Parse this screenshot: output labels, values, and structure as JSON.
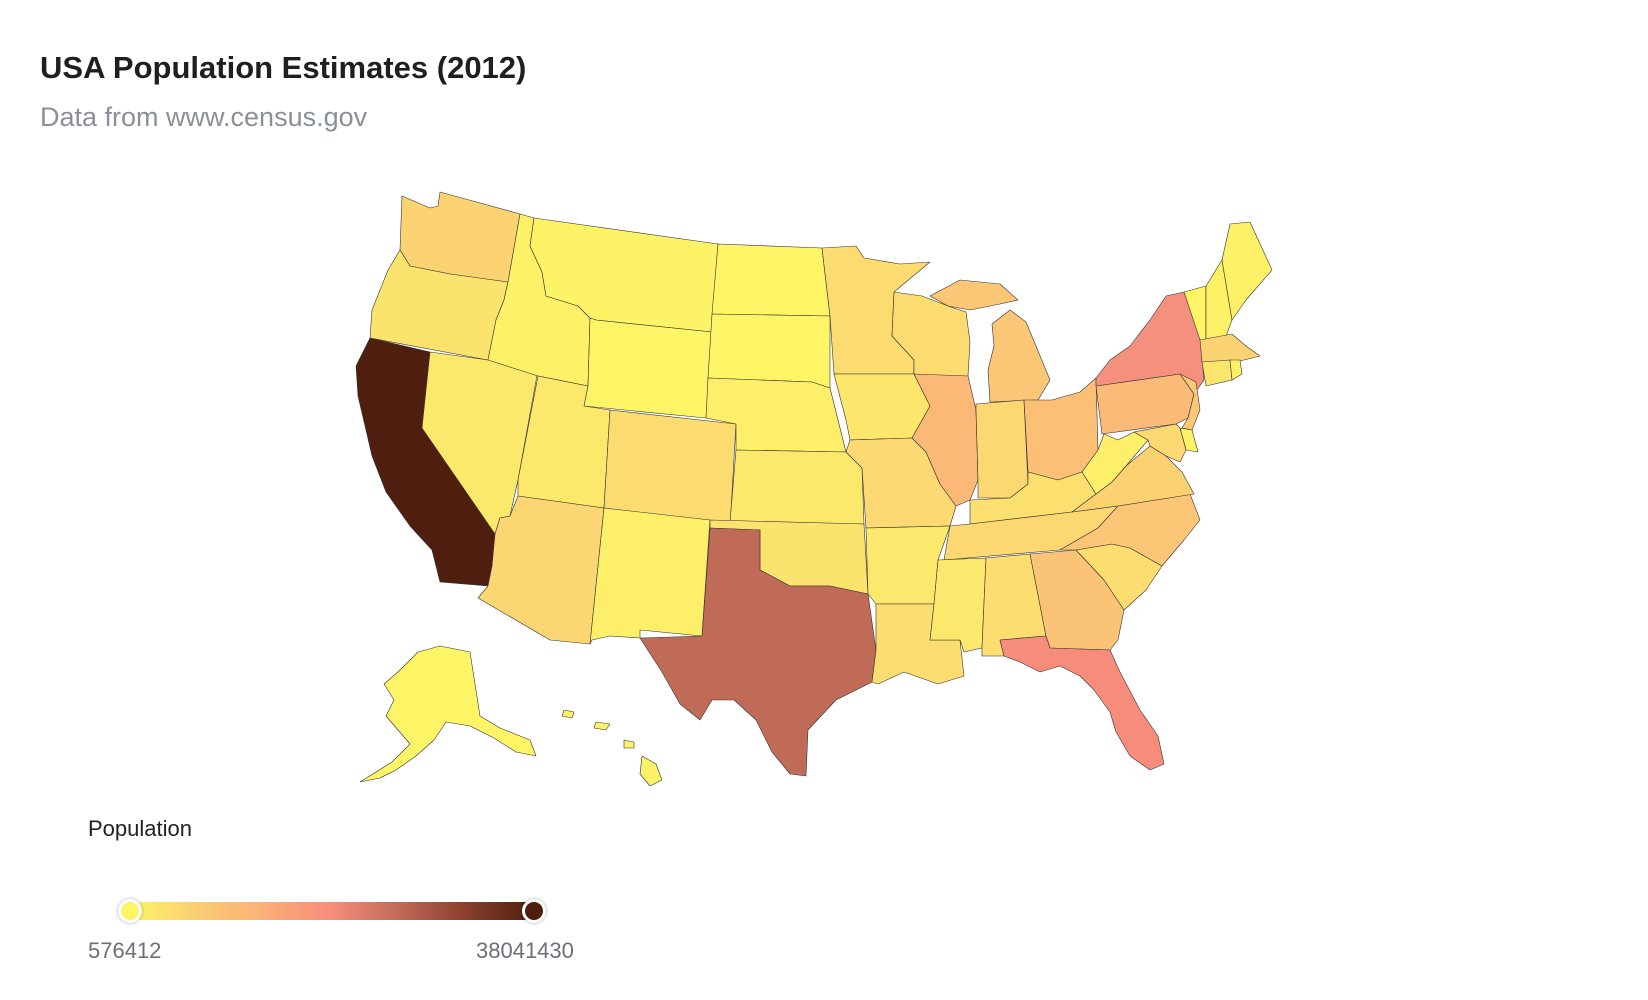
{
  "title": "USA Population Estimates (2012)",
  "subtitle": "Data from www.census.gov",
  "legend": {
    "title": "Population",
    "min_label": "576412",
    "max_label": "38041430",
    "colors": [
      "#fdf565",
      "#fbce73",
      "#fbae78",
      "#f68d7b",
      "#c06a58",
      "#893f2c",
      "#4f1e0e"
    ]
  },
  "chart_data": {
    "type": "choropleth",
    "title": "USA Population Estimates (2012)",
    "subtitle": "Data from www.census.gov",
    "value_range": [
      576412,
      38041430
    ],
    "states": [
      {
        "name": "California",
        "color": "#4f1e0e"
      },
      {
        "name": "Texas",
        "color": "#c06a58"
      },
      {
        "name": "New York",
        "color": "#f5907f"
      },
      {
        "name": "Florida",
        "color": "#f68d7b"
      },
      {
        "name": "Illinois",
        "color": "#fbb877"
      },
      {
        "name": "Pennsylvania",
        "color": "#fbba77"
      },
      {
        "name": "Ohio",
        "color": "#fbc075"
      },
      {
        "name": "Georgia",
        "color": "#fbc376"
      },
      {
        "name": "Michigan",
        "color": "#fbc675"
      },
      {
        "name": "North Carolina",
        "color": "#fcc676"
      },
      {
        "name": "New Jersey",
        "color": "#fcc876"
      },
      {
        "name": "Virginia",
        "color": "#fcd172"
      },
      {
        "name": "Washington",
        "color": "#fcd372"
      },
      {
        "name": "Massachusetts",
        "color": "#fcd372"
      },
      {
        "name": "Arizona",
        "color": "#fcd672"
      },
      {
        "name": "Indiana",
        "color": "#fcd772"
      },
      {
        "name": "Tennessee",
        "color": "#fcd772"
      },
      {
        "name": "Missouri",
        "color": "#fcd972"
      },
      {
        "name": "Maryland",
        "color": "#fcd972"
      },
      {
        "name": "Wisconsin",
        "color": "#fcdb71"
      },
      {
        "name": "Minnesota",
        "color": "#fcdb71"
      },
      {
        "name": "Colorado",
        "color": "#fcdc70"
      },
      {
        "name": "Alabama",
        "color": "#fcde70"
      },
      {
        "name": "South Carolina",
        "color": "#fcde70"
      },
      {
        "name": "Louisiana",
        "color": "#fcde70"
      },
      {
        "name": "Kentucky",
        "color": "#fce06f"
      },
      {
        "name": "Oregon",
        "color": "#fce36e"
      },
      {
        "name": "Oklahoma",
        "color": "#fce36e"
      },
      {
        "name": "Connecticut",
        "color": "#fce56d"
      },
      {
        "name": "Iowa",
        "color": "#fce76c"
      },
      {
        "name": "Mississippi",
        "color": "#fce86c"
      },
      {
        "name": "Arkansas",
        "color": "#fce86c"
      },
      {
        "name": "Kansas",
        "color": "#fce96b"
      },
      {
        "name": "Utah",
        "color": "#fce96b"
      },
      {
        "name": "Nevada",
        "color": "#fce96b"
      },
      {
        "name": "New Mexico",
        "color": "#fdef69"
      },
      {
        "name": "Nebraska",
        "color": "#fdef69"
      },
      {
        "name": "West Virginia",
        "color": "#fdef69"
      },
      {
        "name": "Idaho",
        "color": "#fdf168"
      },
      {
        "name": "Hawaii",
        "color": "#fdf168"
      },
      {
        "name": "Maine",
        "color": "#fdf168"
      },
      {
        "name": "New Hampshire",
        "color": "#fdf168"
      },
      {
        "name": "Rhode Island",
        "color": "#fdf267"
      },
      {
        "name": "Montana",
        "color": "#fdf367"
      },
      {
        "name": "Delaware",
        "color": "#fdf367"
      },
      {
        "name": "South Dakota",
        "color": "#fdf466"
      },
      {
        "name": "Alaska",
        "color": "#fdf466"
      },
      {
        "name": "North Dakota",
        "color": "#fdf466"
      },
      {
        "name": "Vermont",
        "color": "#fdf565"
      },
      {
        "name": "Wyoming",
        "color": "#fdf565"
      }
    ]
  }
}
